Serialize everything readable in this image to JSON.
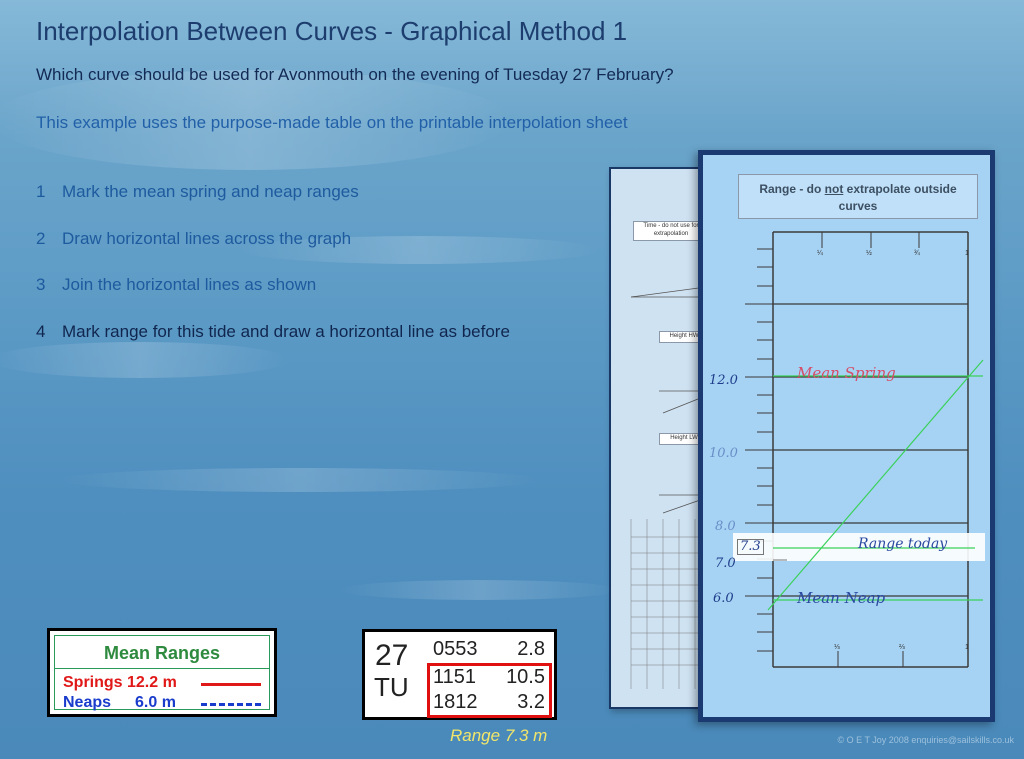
{
  "page": {
    "title": "Interpolation Between Curves - Graphical Method 1",
    "question": "Which curve should be used for Avonmouth on the evening of Tuesday 27 February?",
    "note": "This example uses the purpose-made table on the printable interpolation sheet",
    "copyright": "© O E T Joy 2008 enquiries@sailskills.co.uk"
  },
  "steps": [
    {
      "num": "1",
      "text": "Mark the mean spring and neap ranges"
    },
    {
      "num": "2",
      "text": "Draw horizontal lines across the graph"
    },
    {
      "num": "3",
      "text": "Join the horizontal lines as shown"
    },
    {
      "num": "4",
      "text": "Mark range for this tide and draw a horizontal line as before"
    }
  ],
  "mean_ranges": {
    "title": "Mean Ranges",
    "springs_label": "Springs 12.2 m",
    "neaps_label": "Neaps",
    "neaps_value": "6.0 m",
    "springs_color": "#e01818",
    "neaps_color": "#1a3ccc"
  },
  "tide_table": {
    "day": "27",
    "dow": "TU",
    "rows": [
      {
        "time": "0553",
        "height": "2.8"
      },
      {
        "time": "1151",
        "height": "10.5"
      },
      {
        "time": "1812",
        "height": "3.2"
      }
    ],
    "range_caption": "Range 7.3 m",
    "highlight_color": "#e01010"
  },
  "sheet": {
    "warning_prefix": "Range - do ",
    "warning_not": "not",
    "warning_suffix": " extrapolate outside",
    "warning_line2": "curves",
    "top_ticks": [
      "¼",
      "½",
      "¾",
      "1"
    ],
    "bottom_ticks": [
      "⅓",
      "⅔",
      "1"
    ],
    "y_labels": [
      "12.0",
      "10.0",
      "8.0",
      "7.0",
      "6.0"
    ],
    "range_today_value": "7.3",
    "mean_spring": "Mean Spring",
    "range_today": "Range today",
    "mean_neap": "Mean Neap",
    "line_color": "#3ad15a"
  },
  "back_sheet": {
    "time_box": "Time - do not use for extrapolation",
    "height_hw": "Height HW",
    "height_lw": "Height LW"
  }
}
